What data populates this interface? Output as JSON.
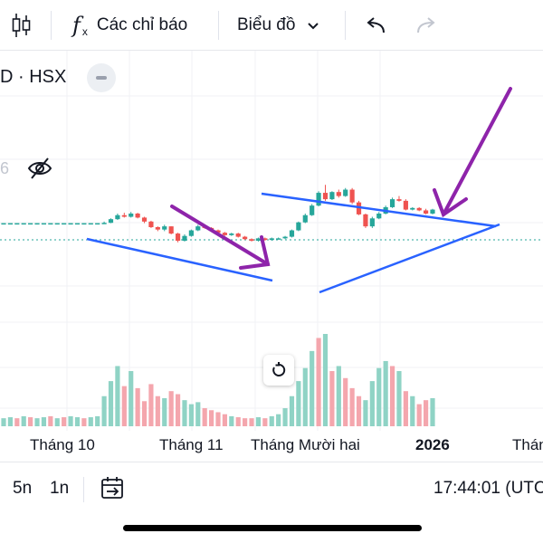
{
  "toolbar": {
    "indicators_label": "Các chỉ báo",
    "chart_type_label": "Biểu đồ"
  },
  "symbol": {
    "text": "D · HSX"
  },
  "price_scale": {
    "partial_number": "6"
  },
  "x_axis": {
    "labels": [
      "Tháng 10",
      "Tháng 11",
      "Tháng Mười hai",
      "2026",
      "Tháng"
    ]
  },
  "bottom_bar": {
    "range_5d": "5n",
    "range_1m": "1n",
    "time": "17:44:01 (UTC"
  },
  "colors": {
    "up": "#26a69a",
    "down": "#ef5350",
    "trendline": "#2962ff",
    "arrow": "#8e24aa",
    "volume_up": "#8fd3c5",
    "volume_down": "#f4a6ad"
  },
  "chart_data": {
    "type": "candlestick",
    "title": "",
    "candles": [
      [
        100,
        100,
        100,
        100
      ],
      [
        100,
        100,
        100,
        100
      ],
      [
        100,
        100,
        100,
        100
      ],
      [
        100,
        100,
        100,
        100
      ],
      [
        100,
        100,
        100,
        100
      ],
      [
        100,
        100,
        100,
        100
      ],
      [
        100,
        100,
        100,
        100
      ],
      [
        100,
        100,
        100,
        100
      ],
      [
        100,
        100,
        100,
        100
      ],
      [
        100,
        100,
        100,
        100
      ],
      [
        100,
        100,
        100,
        100
      ],
      [
        100,
        100,
        100,
        100
      ],
      [
        100,
        100,
        100,
        100
      ],
      [
        100,
        100,
        100,
        100
      ],
      [
        100,
        100,
        100,
        100
      ],
      [
        100,
        101,
        99.8,
        100.2
      ],
      [
        100.2,
        103,
        100,
        102.5
      ],
      [
        102.5,
        106,
        102,
        105
      ],
      [
        105,
        106.5,
        103.5,
        104
      ],
      [
        104,
        107,
        103.5,
        106
      ],
      [
        106,
        106.5,
        103,
        103.5
      ],
      [
        103.5,
        104,
        100,
        101
      ],
      [
        101,
        101.5,
        97,
        97.5
      ],
      [
        97.5,
        98,
        95,
        96
      ],
      [
        96,
        99,
        95,
        98
      ],
      [
        98,
        98,
        93,
        93.5
      ],
      [
        93.5,
        94,
        88,
        89
      ],
      [
        89,
        93,
        88.5,
        92
      ],
      [
        92,
        96,
        91.5,
        95.5
      ],
      [
        95.5,
        99,
        95,
        98
      ],
      [
        98,
        99,
        96.5,
        97
      ],
      [
        97,
        97.5,
        95,
        95.5
      ],
      [
        95.5,
        96,
        93.5,
        94
      ],
      [
        94,
        94.5,
        92,
        92.5
      ],
      [
        92.5,
        94,
        92,
        93.5
      ],
      [
        93.5,
        94,
        91,
        91.5
      ],
      [
        91.5,
        92,
        89.5,
        90
      ],
      [
        90,
        90.5,
        88.5,
        89
      ],
      [
        89,
        91,
        88.5,
        90.5
      ],
      [
        90.5,
        91,
        89,
        89.5
      ],
      [
        89.5,
        91,
        89,
        90.5
      ],
      [
        90.5,
        91,
        90,
        90.5
      ],
      [
        90.5,
        92,
        90,
        91.5
      ],
      [
        91.5,
        96,
        91,
        95.5
      ],
      [
        95.5,
        101,
        95,
        100.5
      ],
      [
        100.5,
        106,
        100,
        105
      ],
      [
        105,
        112,
        104.5,
        111
      ],
      [
        111,
        120,
        110.5,
        119
      ],
      [
        119,
        124,
        114,
        115
      ],
      [
        115,
        120,
        114.5,
        119.5
      ],
      [
        119.5,
        121,
        116,
        117
      ],
      [
        117,
        122,
        116.5,
        121
      ],
      [
        121,
        122,
        112,
        113
      ],
      [
        113,
        114,
        105,
        105.5
      ],
      [
        105.5,
        106,
        97,
        98
      ],
      [
        98,
        104,
        97,
        103
      ],
      [
        103,
        107,
        102.5,
        106
      ],
      [
        106,
        111,
        105.5,
        110
      ],
      [
        110,
        116,
        109.5,
        115
      ],
      [
        115,
        117,
        113.5,
        114
      ],
      [
        114,
        115,
        108,
        108.5
      ],
      [
        108.5,
        110,
        108,
        109.5
      ],
      [
        109.5,
        110,
        107.5,
        108
      ],
      [
        108,
        109,
        105.5,
        106
      ],
      [
        106,
        109,
        105.5,
        108.5
      ]
    ],
    "volume": [
      8,
      9,
      8,
      10,
      9,
      8,
      9,
      10,
      8,
      9,
      10,
      9,
      8,
      9,
      10,
      30,
      45,
      60,
      40,
      55,
      38,
      25,
      42,
      30,
      28,
      35,
      32,
      26,
      22,
      24,
      18,
      16,
      14,
      12,
      10,
      9,
      8,
      8,
      9,
      8,
      10,
      12,
      18,
      30,
      45,
      58,
      75,
      88,
      92,
      55,
      60,
      48,
      38,
      30,
      26,
      45,
      58,
      65,
      60,
      55,
      35,
      30,
      22,
      26,
      28
    ],
    "volume_up": [
      true,
      true,
      false,
      true,
      false,
      true,
      true,
      false,
      true,
      false,
      true,
      true,
      false,
      true,
      true,
      true,
      true,
      true,
      false,
      true,
      false,
      false,
      false,
      false,
      true,
      false,
      false,
      true,
      true,
      true,
      false,
      false,
      false,
      false,
      true,
      false,
      false,
      false,
      true,
      false,
      true,
      true,
      true,
      true,
      true,
      true,
      true,
      false,
      true,
      false,
      true,
      false,
      false,
      false,
      true,
      true,
      true,
      true,
      false,
      true,
      false,
      true,
      false,
      false,
      true
    ],
    "ylim": [
      72,
      140
    ]
  }
}
